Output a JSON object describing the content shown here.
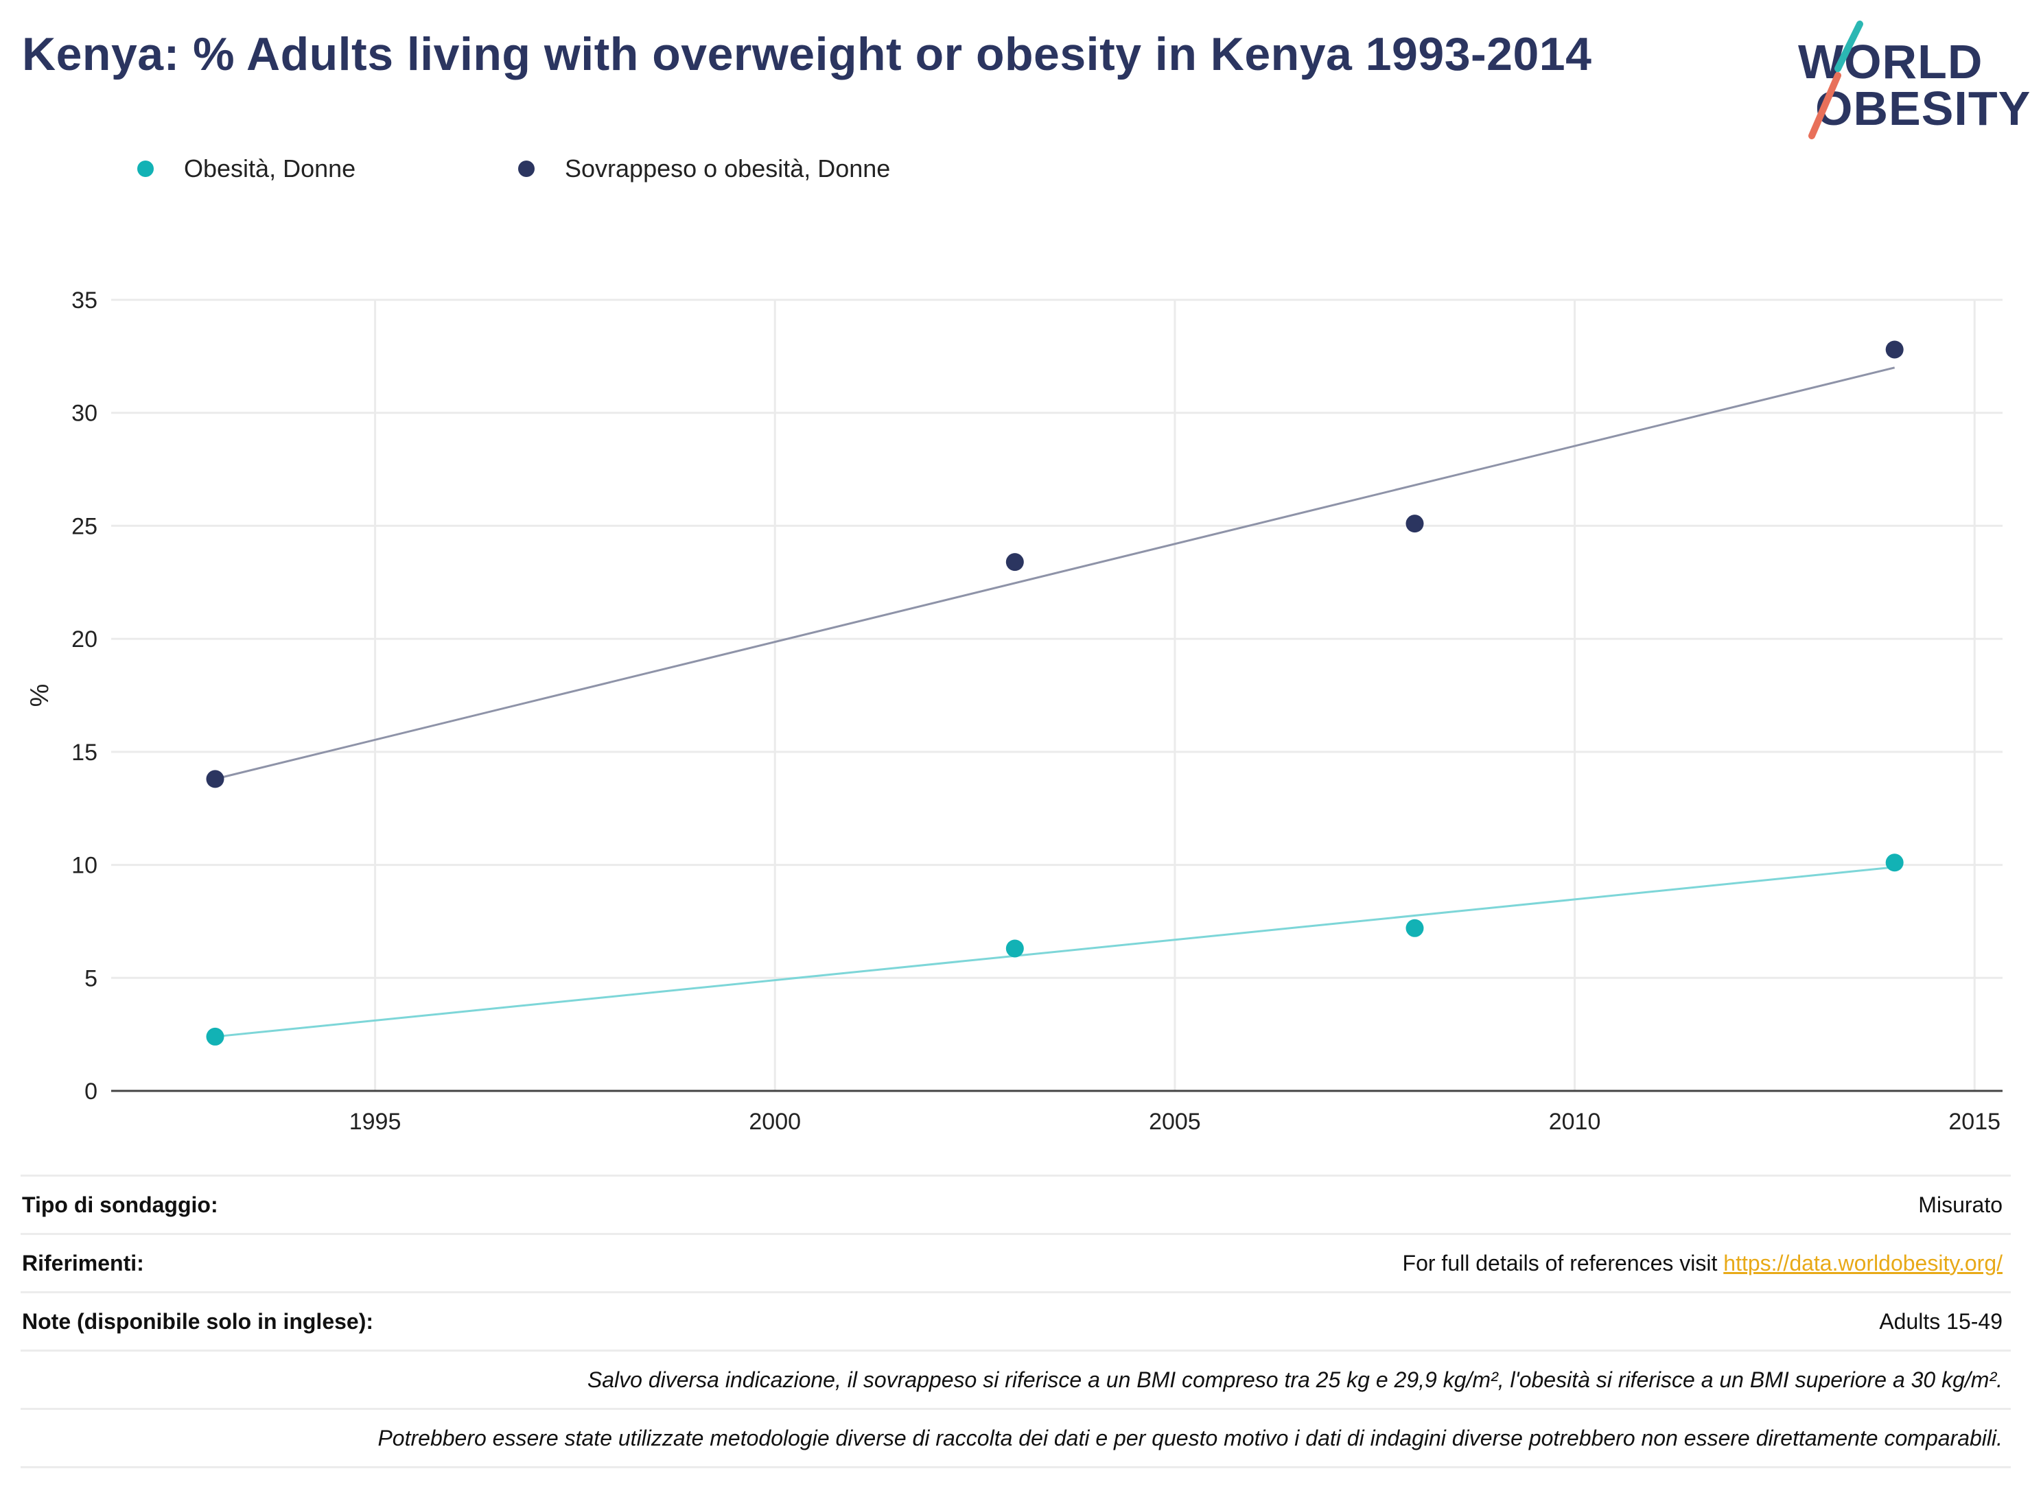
{
  "title": "Kenya: % Adults living with overweight or obesity in Kenya 1993-2014",
  "logo": {
    "line1": "WORLD",
    "line2": "OBESITY",
    "accent_teal": "#2bb7b3",
    "accent_coral": "#e8705a"
  },
  "legend": [
    {
      "label": "Obesità, Donne",
      "color": "#12b2b5"
    },
    {
      "label": "Sovrappeso o obesità, Donne",
      "color": "#2b3560"
    }
  ],
  "chart_data": {
    "type": "scatter",
    "title": "Kenya: % Adults living with overweight or obesity in Kenya 1993-2014",
    "ylabel": "%",
    "xlabel": "",
    "xlim": [
      1991.7,
      2015.35
    ],
    "ylim": [
      0,
      35
    ],
    "xticks": [
      1995,
      2000,
      2005,
      2010,
      2015
    ],
    "yticks": [
      0,
      5,
      10,
      15,
      20,
      25,
      30,
      35
    ],
    "grid": true,
    "legend_position": "top-left",
    "series": [
      {
        "name": "Obesità, Donne",
        "color": "#12b2b5",
        "trend_color": "#7dd6d8",
        "x": [
          1993,
          2003,
          2008,
          2014
        ],
        "y": [
          2.4,
          6.3,
          7.2,
          10.1
        ],
        "trend": {
          "x": [
            1993,
            2014
          ],
          "y": [
            2.4,
            9.9
          ]
        }
      },
      {
        "name": "Sovrappeso o obesità, Donne",
        "color": "#2b3560",
        "trend_color": "#8e93a8",
        "x": [
          1993,
          2003,
          2008,
          2014
        ],
        "y": [
          13.8,
          23.4,
          25.1,
          32.8
        ],
        "trend": {
          "x": [
            1993,
            2014
          ],
          "y": [
            13.8,
            32.0
          ]
        }
      }
    ]
  },
  "info": {
    "survey_type_label": "Tipo di sondaggio:",
    "survey_type_value": "Misurato",
    "references_label": "Riferimenti:",
    "references_text": "For full details of references visit ",
    "references_link": "https://data.worldobesity.org/",
    "notes_label": "Note (disponibile solo in inglese):",
    "notes_value": "Adults 15-49",
    "note_bmi": "Salvo diversa indicazione, il sovrappeso si riferisce a un BMI compreso tra 25 kg e 29,9 kg/m², l'obesità si riferisce a un BMI superiore a 30 kg/m².",
    "note_methods": "Potrebbero essere state utilizzate metodologie diverse di raccolta dei dati e per questo motivo i dati di indagini diverse potrebbero non essere direttamente comparabili."
  }
}
